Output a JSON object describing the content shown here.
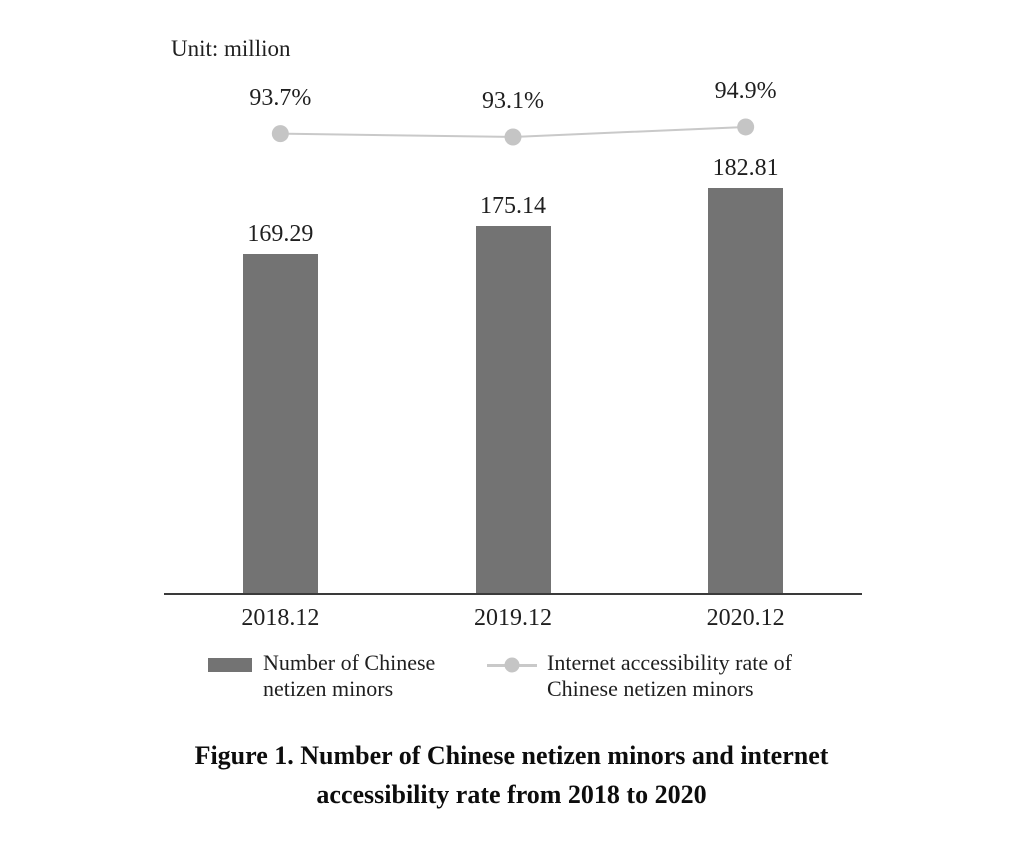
{
  "unit_note": "Unit: million",
  "caption_lines": [
    "Figure 1. Number of Chinese netizen minors and internet",
    "accessibility rate from 2018 to 2020"
  ],
  "colors": {
    "bar": "#737373",
    "line": "#c9c9c9",
    "marker": "#c5c5c5",
    "text": "#1f1f1f",
    "axis": "#3a3a3a"
  },
  "legend": {
    "items": [
      {
        "swatch": "bar",
        "lines": [
          "Number of Chinese",
          "netizen minors"
        ]
      },
      {
        "swatch": "line-marker",
        "lines": [
          "Internet accessibility rate of",
          "Chinese netizen minors"
        ]
      }
    ]
  },
  "chart_data": {
    "type": "bar",
    "title": "Figure 1. Number of Chinese netizen minors and internet accessibility rate from 2018 to 2020",
    "unit_note": "Unit: million",
    "categories": [
      "2018.12",
      "2019.12",
      "2020.12"
    ],
    "series": [
      {
        "name": "Number of Chinese netizen minors",
        "type": "bar",
        "unit": "million",
        "values": [
          169.29,
          175.14,
          182.81
        ]
      },
      {
        "name": "Internet accessibility rate of Chinese netizen minors",
        "type": "line",
        "unit": "%",
        "values": [
          93.7,
          93.1,
          94.9
        ]
      }
    ],
    "bar_axis": {
      "min": 100,
      "max": 200,
      "axis_labels_visible": false
    },
    "grid": false,
    "data_labels": true,
    "legend_position": "bottom"
  }
}
